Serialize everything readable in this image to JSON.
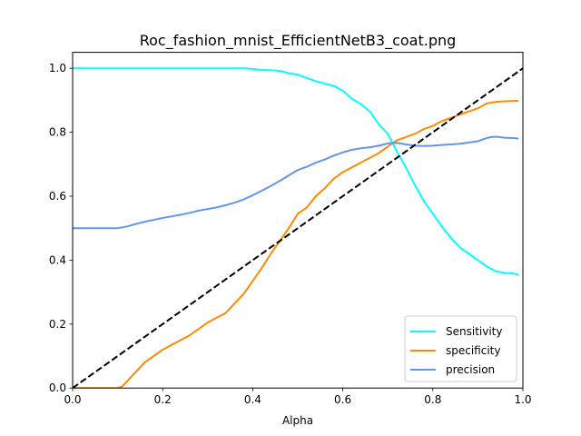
{
  "chart_data": {
    "type": "line",
    "title": "Roc_fashion_mnist_EfficientNetB3_coat.png",
    "xlabel": "Alpha",
    "ylabel": "",
    "xlim": [
      0,
      1
    ],
    "ylim": [
      0,
      1.05
    ],
    "x_ticks": [
      0,
      0.2,
      0.4,
      0.6,
      0.8,
      1
    ],
    "x_tick_labels": [
      "0.0",
      "0.2",
      "0.4",
      "0.6",
      "0.8",
      "1.0"
    ],
    "y_ticks": [
      0,
      0.2,
      0.4,
      0.6,
      0.8,
      1
    ],
    "y_tick_labels": [
      "0.0",
      "0.2",
      "0.4",
      "0.6",
      "0.8",
      "1.0"
    ],
    "grid": false,
    "legend_position": "lower right",
    "series": [
      {
        "name": "Sensitivity",
        "color": "#00ffff",
        "style": "solid",
        "x": [
          0,
          0.05,
          0.1,
          0.15,
          0.2,
          0.25,
          0.3,
          0.35,
          0.38,
          0.4,
          0.42,
          0.44,
          0.46,
          0.48,
          0.5,
          0.52,
          0.54,
          0.56,
          0.58,
          0.6,
          0.62,
          0.64,
          0.66,
          0.68,
          0.7,
          0.72,
          0.74,
          0.76,
          0.78,
          0.8,
          0.82,
          0.84,
          0.86,
          0.88,
          0.9,
          0.92,
          0.94,
          0.96,
          0.98,
          0.99
        ],
        "y": [
          1.0,
          1.0,
          1.0,
          1.0,
          1.0,
          1.0,
          1.0,
          1.0,
          1.0,
          0.998,
          0.995,
          0.994,
          0.992,
          0.985,
          0.98,
          0.97,
          0.96,
          0.952,
          0.945,
          0.93,
          0.905,
          0.888,
          0.865,
          0.825,
          0.795,
          0.74,
          0.69,
          0.635,
          0.585,
          0.545,
          0.505,
          0.47,
          0.44,
          0.42,
          0.4,
          0.38,
          0.365,
          0.36,
          0.358,
          0.355
        ]
      },
      {
        "name": "specificity",
        "color": "#ff8c00",
        "style": "solid",
        "x": [
          0,
          0.05,
          0.1,
          0.11,
          0.12,
          0.14,
          0.16,
          0.18,
          0.2,
          0.22,
          0.24,
          0.26,
          0.28,
          0.3,
          0.32,
          0.34,
          0.36,
          0.38,
          0.4,
          0.42,
          0.44,
          0.46,
          0.48,
          0.5,
          0.52,
          0.54,
          0.56,
          0.58,
          0.6,
          0.62,
          0.64,
          0.66,
          0.68,
          0.7,
          0.72,
          0.74,
          0.76,
          0.78,
          0.8,
          0.82,
          0.84,
          0.86,
          0.88,
          0.9,
          0.92,
          0.94,
          0.96,
          0.98,
          0.99
        ],
        "y": [
          0,
          0,
          0,
          0.005,
          0.02,
          0.05,
          0.08,
          0.1,
          0.12,
          0.135,
          0.15,
          0.165,
          0.185,
          0.205,
          0.22,
          0.235,
          0.265,
          0.295,
          0.335,
          0.375,
          0.42,
          0.46,
          0.5,
          0.545,
          0.565,
          0.6,
          0.625,
          0.655,
          0.675,
          0.69,
          0.705,
          0.72,
          0.735,
          0.755,
          0.775,
          0.785,
          0.795,
          0.81,
          0.82,
          0.835,
          0.845,
          0.855,
          0.865,
          0.875,
          0.89,
          0.895,
          0.897,
          0.898,
          0.898
        ]
      },
      {
        "name": "precision",
        "color": "#6495ed",
        "style": "solid",
        "x": [
          0,
          0.05,
          0.1,
          0.12,
          0.14,
          0.16,
          0.18,
          0.2,
          0.22,
          0.24,
          0.26,
          0.28,
          0.3,
          0.32,
          0.34,
          0.36,
          0.38,
          0.4,
          0.42,
          0.44,
          0.46,
          0.48,
          0.5,
          0.52,
          0.54,
          0.56,
          0.58,
          0.6,
          0.62,
          0.64,
          0.66,
          0.68,
          0.7,
          0.72,
          0.74,
          0.76,
          0.78,
          0.8,
          0.82,
          0.84,
          0.86,
          0.88,
          0.9,
          0.92,
          0.93,
          0.94,
          0.96,
          0.98,
          0.99
        ],
        "y": [
          0.5,
          0.5,
          0.5,
          0.505,
          0.513,
          0.52,
          0.526,
          0.532,
          0.537,
          0.542,
          0.548,
          0.555,
          0.56,
          0.565,
          0.572,
          0.58,
          0.59,
          0.603,
          0.617,
          0.632,
          0.648,
          0.665,
          0.682,
          0.692,
          0.705,
          0.715,
          0.727,
          0.737,
          0.745,
          0.75,
          0.753,
          0.758,
          0.765,
          0.767,
          0.762,
          0.758,
          0.757,
          0.758,
          0.76,
          0.762,
          0.764,
          0.768,
          0.772,
          0.782,
          0.785,
          0.786,
          0.783,
          0.782,
          0.78
        ]
      },
      {
        "name": "",
        "color": "#000000",
        "style": "dashed",
        "in_legend": false,
        "x": [
          0,
          1
        ],
        "y": [
          0,
          1
        ]
      }
    ]
  }
}
